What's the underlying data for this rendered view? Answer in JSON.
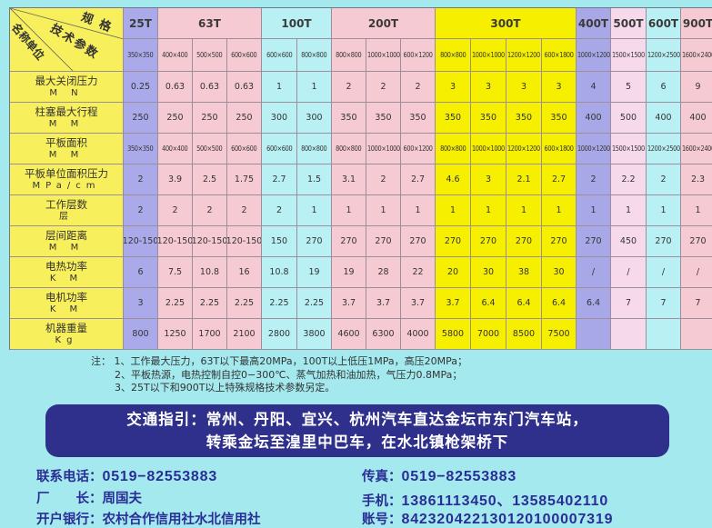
{
  "colors": {
    "label_col": "#f7ef5c",
    "25T": "#aaaaea",
    "63T": "#f6cad2",
    "100T": "#b8f0f4",
    "200T": "#f6cad2",
    "300T": "#f6f000",
    "400T": "#a8a8e8",
    "500T": "#f7d9ec",
    "600T": "#b8f0f4",
    "900T": "#f6cad2",
    "banner": "#2f2f8c",
    "contact_text": "#2b2d96"
  },
  "table": {
    "corner": {
      "spec": "规格",
      "params": "技术参数",
      "name_unit": "名称单位"
    },
    "groups": [
      {
        "label": "25T",
        "span": 1
      },
      {
        "label": "63T",
        "span": 3
      },
      {
        "label": "100T",
        "span": 2
      },
      {
        "label": "200T",
        "span": 3
      },
      {
        "label": "300T",
        "span": 4
      },
      {
        "label": "400T",
        "span": 1
      },
      {
        "label": "500T",
        "span": 1
      },
      {
        "label": "600T",
        "span": 1
      },
      {
        "label": "900T",
        "span": 1
      }
    ],
    "specs": [
      "350×350",
      "400×400",
      "500×500",
      "600×600",
      "600×600",
      "800×800",
      "800×800",
      "1000×1000",
      "600×1200",
      "800×800",
      "1000×1000",
      "1200×1200",
      "600×1800",
      "1000×1200",
      "1500×1500",
      "1200×2500",
      "1600×2400"
    ],
    "rows": [
      {
        "name": "最大关闭压力",
        "unit": "M N",
        "values": [
          "0.25",
          "0.63",
          "0.63",
          "0.63",
          "1",
          "1",
          "2",
          "2",
          "2",
          "3",
          "3",
          "3",
          "3",
          "4",
          "5",
          "6",
          "9"
        ]
      },
      {
        "name": "柱塞最大行程",
        "unit": "M M",
        "values": [
          "250",
          "250",
          "250",
          "250",
          "300",
          "300",
          "350",
          "350",
          "350",
          "350",
          "350",
          "350",
          "350",
          "400",
          "500",
          "400",
          "400"
        ]
      },
      {
        "name": "平板面积",
        "unit": "M M",
        "values": [
          "350×350",
          "400×400",
          "500×500",
          "600×600",
          "600×600",
          "800×800",
          "800×800",
          "1000×1000",
          "600×1200",
          "800×800",
          "1000×1000",
          "1200×1200",
          "600×1800",
          "1000×1200",
          "1500×1500",
          "1200×2500",
          "1600×2400"
        ]
      },
      {
        "name": "平板单位面积压力",
        "unit": "MPa/cm",
        "values": [
          "2",
          "3.9",
          "2.5",
          "1.75",
          "2.7",
          "1.5",
          "3.1",
          "2",
          "2.7",
          "4.6",
          "3",
          "2.1",
          "2.7",
          "2",
          "2.2",
          "2",
          "2.3"
        ]
      },
      {
        "name": "工作层数",
        "unit": "层",
        "values": [
          "2",
          "2",
          "2",
          "2",
          "2",
          "1",
          "1",
          "1",
          "1",
          "1",
          "1",
          "1",
          "1",
          "1",
          "1",
          "1",
          "1"
        ]
      },
      {
        "name": "层间距离",
        "unit": "M M",
        "values": [
          "120-150",
          "120-150",
          "120-150",
          "120-150",
          "150",
          "270",
          "270",
          "270",
          "270",
          "270",
          "270",
          "270",
          "270",
          "270",
          "450",
          "270",
          "270"
        ]
      },
      {
        "name": "电热功率",
        "unit": "K M",
        "values": [
          "6",
          "7.5",
          "10.8",
          "16",
          "10.8",
          "19",
          "19",
          "28",
          "22",
          "20",
          "30",
          "38",
          "30",
          "/",
          "/",
          "/",
          "/"
        ]
      },
      {
        "name": "电机功率",
        "unit": "K M",
        "values": [
          "3",
          "2.25",
          "2.25",
          "2.25",
          "2.25",
          "2.25",
          "3.7",
          "3.7",
          "3.7",
          "3.7",
          "6.4",
          "6.4",
          "6.4",
          "6.4",
          "7",
          "7",
          "7"
        ]
      },
      {
        "name": "机器重量",
        "unit": "Kg",
        "values": [
          "800",
          "1250",
          "1700",
          "2100",
          "2800",
          "3800",
          "4600",
          "6300",
          "4000",
          "5800",
          "7000",
          "8500",
          "7500",
          "",
          "",
          "",
          ""
        ]
      }
    ]
  },
  "notes": [
    "注： 1、工作最大压力，63T以下最高20MPa，100T以上低压1MPa，高压20MPa；",
    "2、平板热源，电热控制自控0−300℃、蒸气加热和油加热，气压力0.8MPa；",
    "3、25T以下和900T以上特殊规格技术参数另定。"
  ],
  "banner": {
    "line1": "交通指引：常州、丹阳、宜兴、杭州汽车直达金坛市东门汽车站，",
    "line2": "转乘金坛至湟里中巴车，在水北镇枪架桥下"
  },
  "contact": {
    "phone_label": "联系电话：",
    "phone": "0519−82553883",
    "fax_label": "传真：",
    "fax": "0519−82553883",
    "director_label": "厂　　长：",
    "director": "周国夫",
    "mobile_label": "手机：",
    "mobile": "13861113450、13585402110",
    "bank_label": "开户银行：",
    "bank": "农村合作信用社水北信用社",
    "account_label": "账号：",
    "account": "842320422130120100007319"
  }
}
